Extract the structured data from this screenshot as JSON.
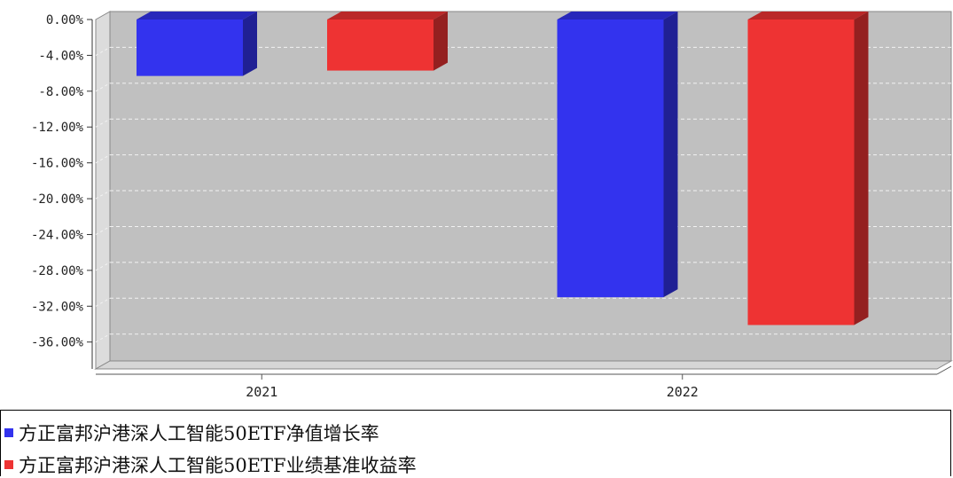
{
  "chart_data": {
    "type": "bar",
    "categories": [
      "2021",
      "2022"
    ],
    "series": [
      {
        "name": "方正富邦沪港深人工智能50ETF净值增长率",
        "color": "#3333ee",
        "values": [
          -6.3,
          -31.0
        ]
      },
      {
        "name": "方正富邦沪港深人工智能50ETF业绩基准收益率",
        "color": "#ee3333",
        "values": [
          -5.7,
          -34.1
        ]
      }
    ],
    "yticks": [
      0,
      -4,
      -8,
      -12,
      -16,
      -20,
      -24,
      -28,
      -32,
      -36
    ],
    "ytick_labels": [
      "0.00%",
      "-4.00%",
      "-8.00%",
      "-12.00%",
      "-16.00%",
      "-20.00%",
      "-24.00%",
      "-28.00%",
      "-32.00%",
      "-36.00%"
    ],
    "ylim": [
      -39,
      0
    ],
    "grid": true,
    "legend_position": "bottom",
    "title": "",
    "xlabel": "",
    "ylabel": ""
  }
}
